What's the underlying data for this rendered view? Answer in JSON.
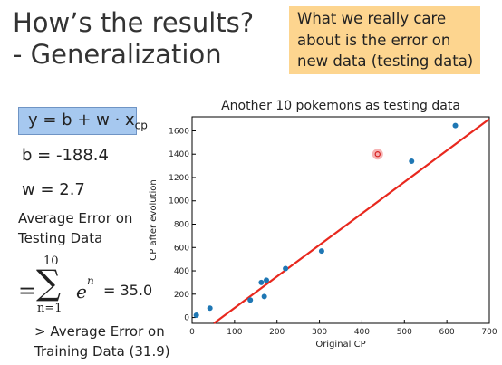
{
  "slide": {
    "title_line1": "How’s the results?",
    "title_line2": "- Generalization",
    "callout": [
      "What we really care",
      "about is the error on",
      "new data (testing data)"
    ],
    "formula": {
      "lhs": "y = b + w · x",
      "sub": "cp"
    },
    "b_text": "b = -188.4",
    "w_text": "w = 2.7",
    "avg_error_label": [
      "Average Error on",
      "Testing Data"
    ],
    "sum": {
      "top": "10",
      "bottom": "n=1",
      "term": "e",
      "exp": "n",
      "result": "= 35.0"
    },
    "comparison": [
      "> Average Error on",
      "Training Data (31.9)"
    ]
  },
  "colors": {
    "callout_bg": "#fdd58f",
    "formula_bg": "#a6c8ef",
    "points": "#1f77b4",
    "fit_line": "#e8281e",
    "highlight": "#f08080"
  },
  "chart_data": {
    "type": "scatter",
    "title": "Another 10 pokemons as testing data",
    "xlabel": "Original CP",
    "ylabel": "CP after evolution",
    "xlim": [
      0,
      700
    ],
    "ylim": [
      -50,
      1720
    ],
    "xticks": [
      0,
      100,
      200,
      300,
      400,
      500,
      600,
      700
    ],
    "yticks": [
      0,
      200,
      400,
      600,
      800,
      1000,
      1200,
      1400,
      1600
    ],
    "grid": false,
    "points": [
      {
        "x": 10,
        "y": 20
      },
      {
        "x": 42,
        "y": 80
      },
      {
        "x": 137,
        "y": 150
      },
      {
        "x": 163,
        "y": 300
      },
      {
        "x": 170,
        "y": 180
      },
      {
        "x": 175,
        "y": 320
      },
      {
        "x": 220,
        "y": 420
      },
      {
        "x": 305,
        "y": 570
      },
      {
        "x": 517,
        "y": 1340
      },
      {
        "x": 620,
        "y": 1645
      }
    ],
    "outlier": {
      "x": 437,
      "y": 1400
    },
    "fit_line": {
      "b": -188.4,
      "w": 2.7
    }
  }
}
